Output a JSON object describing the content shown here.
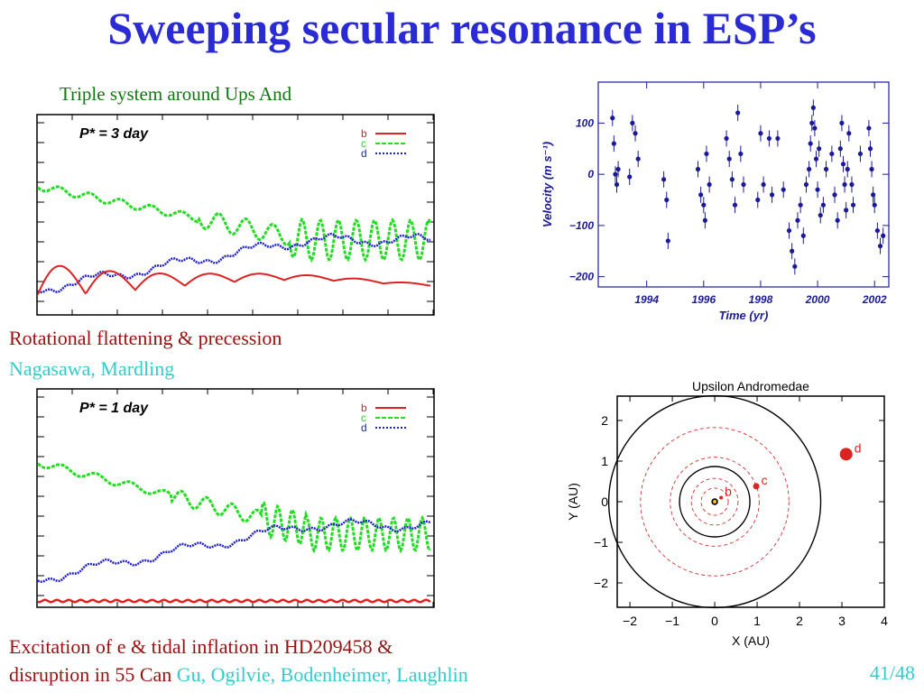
{
  "slide": {
    "title": "Sweeping secular resonance in ESP’s",
    "caption_top": "Triple system around Ups And",
    "caption_rotation": "Rotational flattening & precession",
    "caption_rotation_authors": "Nagasawa, Mardling",
    "caption_bottom_line1": "Excitation of e & tidal inflation in HD209458 &",
    "caption_bottom_line2": "disruption in 55 Can",
    "caption_bottom_authors": "Gu, Ogilvie, Bodenheimer, Laughlin",
    "page_number": "41/48"
  },
  "panel_top": {
    "label": "P* = 3 day",
    "legend": [
      {
        "name": "b",
        "color": "#dd2222",
        "style": "solid"
      },
      {
        "name": "c",
        "color": "#22dd22",
        "style": "dashed"
      },
      {
        "name": "d",
        "color": "#2222cc",
        "style": "dotted"
      }
    ]
  },
  "panel_bottom": {
    "label": "P* = 1 day",
    "legend": [
      {
        "name": "b",
        "color": "#dd2222",
        "style": "solid"
      },
      {
        "name": "c",
        "color": "#22dd22",
        "style": "dashed"
      },
      {
        "name": "d",
        "color": "#2222cc",
        "style": "dotted"
      }
    ]
  },
  "chart_data": [
    {
      "type": "scatter",
      "title": "",
      "xlabel": "Time (yr)",
      "ylabel": "Velocity (m s⁻¹)",
      "xlim": [
        1992.3,
        2002.5
      ],
      "ylim": [
        -220,
        180
      ],
      "x_ticks": [
        "1994",
        "1996",
        "1998",
        "2000",
        "2002"
      ],
      "y_ticks": [
        "100",
        "0",
        "−100",
        "−200"
      ],
      "color": "#1a1a99",
      "points": [
        [
          1992.8,
          110
        ],
        [
          1992.85,
          60
        ],
        [
          1992.9,
          0
        ],
        [
          1992.95,
          -20
        ],
        [
          1993.0,
          10
        ],
        [
          1993.5,
          100
        ],
        [
          1993.6,
          80
        ],
        [
          1993.7,
          30
        ],
        [
          1993.4,
          -5
        ],
        [
          1994.6,
          -10
        ],
        [
          1994.7,
          -50
        ],
        [
          1994.75,
          -130
        ],
        [
          1995.8,
          10
        ],
        [
          1995.9,
          -40
        ],
        [
          1996.0,
          -60
        ],
        [
          1996.05,
          -90
        ],
        [
          1996.1,
          40
        ],
        [
          1996.2,
          -20
        ],
        [
          1996.8,
          70
        ],
        [
          1996.9,
          30
        ],
        [
          1997.0,
          -10
        ],
        [
          1997.1,
          -60
        ],
        [
          1997.2,
          120
        ],
        [
          1997.3,
          40
        ],
        [
          1997.4,
          -20
        ],
        [
          1997.9,
          -50
        ],
        [
          1998.0,
          80
        ],
        [
          1998.1,
          -20
        ],
        [
          1998.3,
          70
        ],
        [
          1998.4,
          -40
        ],
        [
          1998.6,
          70
        ],
        [
          1998.8,
          -30
        ],
        [
          1999.0,
          -110
        ],
        [
          1999.1,
          -150
        ],
        [
          1999.2,
          -180
        ],
        [
          1999.3,
          -90
        ],
        [
          1999.4,
          -60
        ],
        [
          1999.5,
          -120
        ],
        [
          1999.6,
          -20
        ],
        [
          1999.7,
          10
        ],
        [
          1999.75,
          60
        ],
        [
          1999.8,
          100
        ],
        [
          1999.85,
          130
        ],
        [
          1999.9,
          90
        ],
        [
          1999.95,
          30
        ],
        [
          2000.0,
          -30
        ],
        [
          2000.05,
          50
        ],
        [
          2000.1,
          -80
        ],
        [
          2000.2,
          -60
        ],
        [
          2000.3,
          10
        ],
        [
          2000.5,
          40
        ],
        [
          2000.6,
          -40
        ],
        [
          2000.7,
          -90
        ],
        [
          2000.8,
          50
        ],
        [
          2000.85,
          100
        ],
        [
          2000.9,
          20
        ],
        [
          2000.95,
          -20
        ],
        [
          2001.0,
          -70
        ],
        [
          2001.05,
          10
        ],
        [
          2001.1,
          80
        ],
        [
          2001.2,
          -20
        ],
        [
          2001.25,
          -60
        ],
        [
          2001.5,
          40
        ],
        [
          2001.8,
          90
        ],
        [
          2001.85,
          50
        ],
        [
          2001.9,
          10
        ],
        [
          2001.95,
          -40
        ],
        [
          2002.0,
          -60
        ],
        [
          2002.1,
          -110
        ],
        [
          2002.2,
          -140
        ],
        [
          2002.3,
          -120
        ]
      ]
    },
    {
      "type": "scatter",
      "title": "Upsilon Andromedae",
      "xlabel": "X (AU)",
      "ylabel": "Y (AU)",
      "xlim": [
        -2.3,
        4.0
      ],
      "ylim": [
        -2.6,
        2.6
      ],
      "x_ticks": [
        "−2",
        "−1",
        "0",
        "1",
        "2",
        "3",
        "4"
      ],
      "y_ticks": [
        "2",
        "1",
        "0",
        "−1",
        "−2"
      ],
      "orbits": [
        {
          "name": "b",
          "a": 0.06
        },
        {
          "name": "c",
          "a": 0.83
        },
        {
          "name": "d",
          "a": 2.5
        }
      ],
      "planets": [
        {
          "name": "b",
          "x": 0.15,
          "y": 0.1,
          "color": "#dd2222"
        },
        {
          "name": "c",
          "x": 0.98,
          "y": 0.38,
          "color": "#dd2222"
        },
        {
          "name": "d",
          "x": 3.1,
          "y": 1.17,
          "color": "#dd2222"
        }
      ]
    }
  ]
}
